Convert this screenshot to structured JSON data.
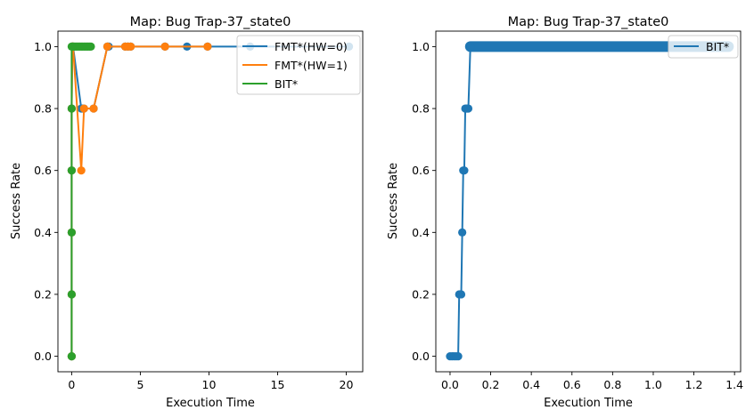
{
  "chart_data": [
    {
      "type": "line",
      "title": "Map: Bug Trap-37_state0",
      "xlabel": "Execution Time",
      "ylabel": "Success Rate",
      "xlim": [
        -1.0,
        21.2
      ],
      "ylim": [
        -0.05,
        1.05
      ],
      "xticks": [
        0,
        5,
        10,
        15,
        20
      ],
      "yticks": [
        0.0,
        0.2,
        0.4,
        0.6,
        0.8,
        1.0
      ],
      "xtick_labels": [
        "0",
        "5",
        "10",
        "15",
        "20"
      ],
      "ytick_labels": [
        "0.0",
        "0.2",
        "0.4",
        "0.6",
        "0.8",
        "1.0"
      ],
      "grid": false,
      "legend": "top-right",
      "series": [
        {
          "name": "FMT*(HW=0)",
          "color": "#1f77b4",
          "markers": true,
          "x": [
            0.0,
            0.0,
            0.0,
            0.0,
            0.0,
            0.05,
            0.1,
            0.7,
            0.8,
            0.9,
            1.6,
            2.6,
            2.7,
            3.9,
            4.1,
            4.3,
            6.8,
            8.4,
            9.9,
            13.0,
            20.2
          ],
          "y": [
            0.0,
            0.2,
            0.4,
            0.6,
            0.8,
            1.0,
            1.0,
            0.8,
            0.8,
            0.8,
            0.8,
            1.0,
            1.0,
            1.0,
            1.0,
            1.0,
            1.0,
            1.0,
            1.0,
            1.0,
            1.0
          ]
        },
        {
          "name": "FMT*(HW=1)",
          "color": "#ff7f0e",
          "markers": true,
          "x": [
            0.0,
            0.0,
            0.0,
            0.0,
            0.0,
            0.05,
            0.1,
            0.7,
            0.9,
            1.6,
            2.6,
            3.9,
            4.1,
            4.3,
            6.8,
            9.9
          ],
          "y": [
            0.0,
            0.2,
            0.4,
            0.6,
            0.8,
            1.0,
            1.0,
            0.6,
            0.8,
            0.8,
            1.0,
            1.0,
            1.0,
            1.0,
            1.0,
            1.0
          ]
        },
        {
          "name": "BIT*",
          "color": "#2ca02c",
          "markers": true,
          "x": [
            0.0,
            0.0,
            0.0,
            0.0,
            0.0,
            0.0,
            0.1,
            0.2,
            0.3,
            0.4,
            0.5,
            0.6,
            0.7,
            0.8,
            0.9,
            1.0,
            1.1,
            1.2,
            1.3,
            1.4
          ],
          "y": [
            0.0,
            0.2,
            0.4,
            0.6,
            0.8,
            1.0,
            1.0,
            1.0,
            1.0,
            1.0,
            1.0,
            1.0,
            1.0,
            1.0,
            1.0,
            1.0,
            1.0,
            1.0,
            1.0,
            1.0
          ]
        }
      ]
    },
    {
      "type": "line",
      "title": "Map: Bug Trap-37_state0",
      "xlabel": "Execution Time",
      "ylabel": "Success Rate",
      "xlim": [
        -0.07,
        1.43
      ],
      "ylim": [
        -0.05,
        1.05
      ],
      "xticks": [
        0.0,
        0.2,
        0.4,
        0.6,
        0.8,
        1.0,
        1.2,
        1.4
      ],
      "yticks": [
        0.0,
        0.2,
        0.4,
        0.6,
        0.8,
        1.0
      ],
      "xtick_labels": [
        "0.0",
        "0.2",
        "0.4",
        "0.6",
        "0.8",
        "1.0",
        "1.2",
        "1.4"
      ],
      "ytick_labels": [
        "0.0",
        "0.2",
        "0.4",
        "0.6",
        "0.8",
        "1.0"
      ],
      "grid": false,
      "legend": "top-right",
      "series": [
        {
          "name": "BIT*",
          "color": "#1f77b4",
          "markers": true,
          "dense_segment": {
            "from": 0.1,
            "to": 1.37,
            "y": 1.0
          },
          "x": [
            0.0,
            0.01,
            0.02,
            0.03,
            0.04,
            0.045,
            0.05,
            0.055,
            0.06,
            0.065,
            0.07,
            0.075,
            0.08,
            0.085,
            0.09,
            0.1
          ],
          "y": [
            0.0,
            0.0,
            0.0,
            0.0,
            0.0,
            0.2,
            0.2,
            0.2,
            0.4,
            0.6,
            0.6,
            0.8,
            0.8,
            0.8,
            0.8,
            1.0
          ]
        }
      ]
    }
  ]
}
